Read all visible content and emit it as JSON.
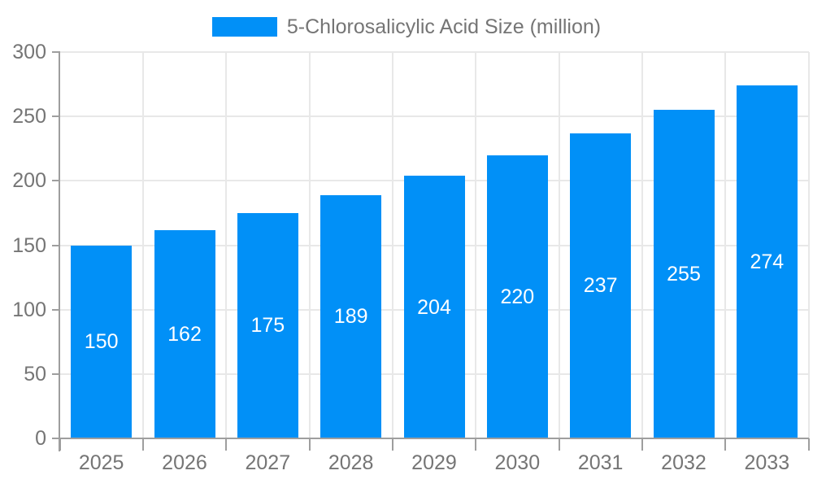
{
  "legend": {
    "label": "5-Chlorosalicylic Acid Size (million)"
  },
  "colors": {
    "bar": "#0190f7",
    "axis": "#9e9e9e",
    "grid": "#e8e8e8",
    "text": "#757575",
    "value_label": "#ffffff",
    "background": "#ffffff"
  },
  "chart_data": {
    "type": "bar",
    "title": "5-Chlorosalicylic Acid Size (million)",
    "series_name": "5-Chlorosalicylic Acid Size (million)",
    "categories": [
      "2025",
      "2026",
      "2027",
      "2028",
      "2029",
      "2030",
      "2031",
      "2032",
      "2033"
    ],
    "values": [
      150,
      162,
      175,
      189,
      204,
      220,
      237,
      255,
      274
    ],
    "xlabel": "",
    "ylabel": "",
    "ylim": [
      0,
      300
    ],
    "yticks": [
      0,
      50,
      100,
      150,
      200,
      250,
      300
    ],
    "grid": true,
    "legend_position": "top-center",
    "value_labels": "inside-center"
  }
}
